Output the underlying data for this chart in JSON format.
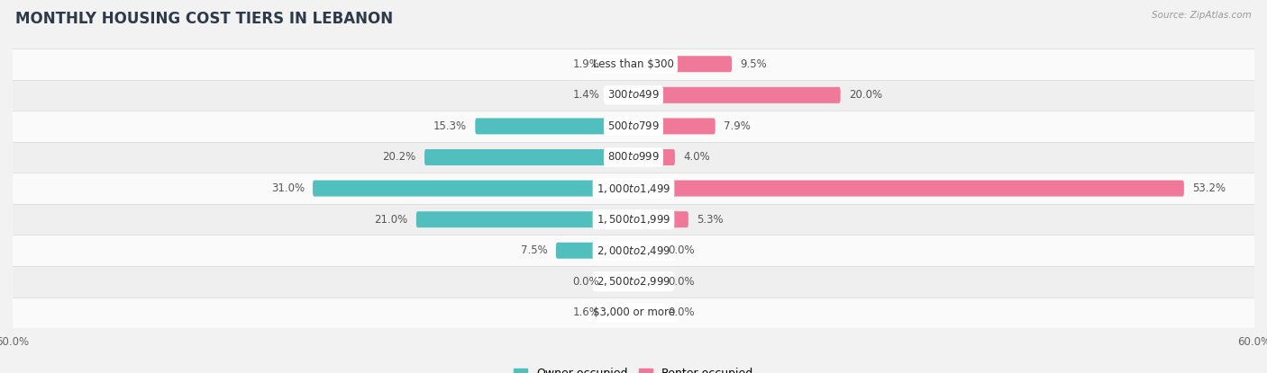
{
  "title": "MONTHLY HOUSING COST TIERS IN LEBANON",
  "source": "Source: ZipAtlas.com",
  "categories": [
    "Less than $300",
    "$300 to $499",
    "$500 to $799",
    "$800 to $999",
    "$1,000 to $1,499",
    "$1,500 to $1,999",
    "$2,000 to $2,499",
    "$2,500 to $2,999",
    "$3,000 or more"
  ],
  "owner_values": [
    1.9,
    1.4,
    15.3,
    20.2,
    31.0,
    21.0,
    7.5,
    0.0,
    1.6
  ],
  "renter_values": [
    9.5,
    20.0,
    7.9,
    4.0,
    53.2,
    5.3,
    0.0,
    0.0,
    0.0
  ],
  "owner_color": "#52bfbf",
  "renter_color": "#f07898",
  "owner_color_light": "#89d4d4",
  "renter_color_light": "#f5a8be",
  "axis_max": 60.0,
  "background_color": "#f2f2f2",
  "row_colors": [
    "#fafafa",
    "#efefef"
  ],
  "title_fontsize": 12,
  "label_fontsize": 8.5,
  "value_fontsize": 8.5,
  "tick_fontsize": 8.5,
  "legend_fontsize": 9,
  "bar_height": 0.52,
  "title_color": "#2d3a4a",
  "source_color": "#999999",
  "value_color": "#555555"
}
